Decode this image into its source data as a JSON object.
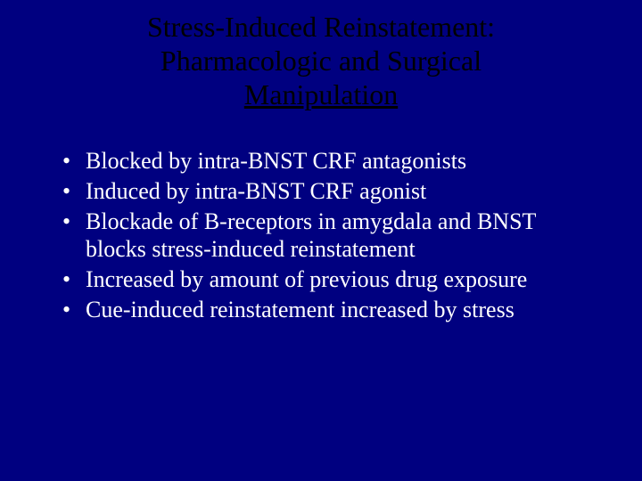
{
  "slide": {
    "background_color": "#000080",
    "title_color": "#000000",
    "body_color": "#ffffff",
    "title_font_size": 32,
    "body_font_size": 26,
    "font_family": "Times New Roman",
    "title": {
      "line1": "Stress-Induced Reinstatement:",
      "line2": "Pharmacologic and Surgical",
      "line3": "Manipulation"
    },
    "bullets": [
      "Blocked by intra-BNST CRF antagonists",
      "Induced by intra-BNST CRF agonist",
      "Blockade of B-receptors in amygdala and BNST blocks stress-induced reinstatement",
      "Increased by amount of previous drug exposure",
      "Cue-induced reinstatement increased by stress"
    ]
  }
}
